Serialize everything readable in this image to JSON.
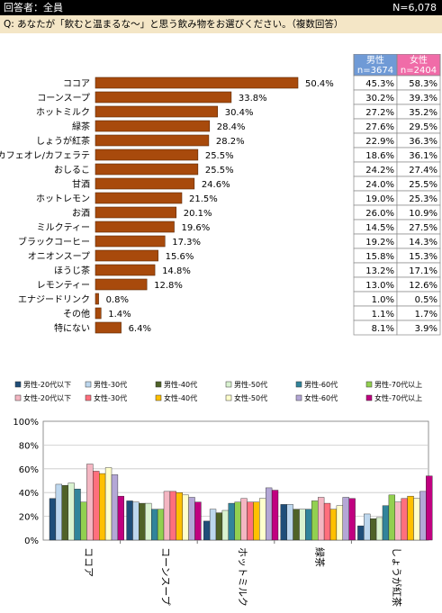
{
  "header": {
    "respondents": "回答者：全員",
    "n_total": "N=6,078"
  },
  "question": "Q:  あなたが「飲むと温まるな～」と思う飲み物をお選びください。（複数回答）",
  "colors": {
    "bar": "#a84a0c",
    "male_header": "#6f9ad6",
    "female_header": "#f06ca8"
  },
  "chart_data": [
    {
      "type": "bar",
      "orientation": "horizontal",
      "categories": [
        "ココア",
        "コーンスープ",
        "ホットミルク",
        "緑茶",
        "しょうが紅茶",
        "カフェオレ/カフェラテ",
        "おしるこ",
        "甘酒",
        "ホットレモン",
        "お酒",
        "ミルクティー",
        "ブラックコーヒー",
        "オニオンスープ",
        "ほうじ茶",
        "レモンティー",
        "エナジードリンク",
        "その他",
        "特にない"
      ],
      "values": [
        50.4,
        33.8,
        30.4,
        28.4,
        28.2,
        25.5,
        25.5,
        24.6,
        21.5,
        20.1,
        19.6,
        17.3,
        15.6,
        14.8,
        12.8,
        0.8,
        1.4,
        6.4
      ],
      "value_labels": [
        "50.4%",
        "33.8%",
        "30.4%",
        "28.4%",
        "28.2%",
        "25.5%",
        "25.5%",
        "24.6%",
        "21.5%",
        "20.1%",
        "19.6%",
        "17.3%",
        "15.6%",
        "14.8%",
        "12.8%",
        "0.8%",
        "1.4%",
        "6.4%"
      ],
      "xlim": [
        0,
        60
      ]
    },
    {
      "type": "table",
      "columns": [
        {
          "name": "男性",
          "n": "n=3674",
          "values": [
            "45.3%",
            "30.2%",
            "27.2%",
            "27.6%",
            "22.9%",
            "18.6%",
            "24.2%",
            "24.0%",
            "19.0%",
            "26.0%",
            "14.5%",
            "19.2%",
            "15.8%",
            "13.2%",
            "13.0%",
            "1.0%",
            "1.1%",
            "8.1%"
          ]
        },
        {
          "name": "女性",
          "n": "n=2404",
          "values": [
            "58.3%",
            "39.3%",
            "35.2%",
            "29.5%",
            "36.3%",
            "36.1%",
            "27.4%",
            "25.5%",
            "25.3%",
            "10.9%",
            "27.5%",
            "14.3%",
            "15.3%",
            "17.1%",
            "12.6%",
            "0.5%",
            "1.7%",
            "3.9%"
          ]
        }
      ]
    },
    {
      "type": "bar",
      "orientation": "vertical",
      "categories": [
        "ココア",
        "コーンスープ",
        "ホットミルク",
        "緑茶",
        "しょうが紅茶"
      ],
      "y_ticks": [
        "0%",
        "20%",
        "40%",
        "60%",
        "80%",
        "100%"
      ],
      "ylim": [
        0,
        100
      ],
      "legend_position": "top",
      "series": [
        {
          "name": "男性-20代以下",
          "color": "#1f4e79",
          "values": [
            35,
            33,
            16,
            30,
            12
          ]
        },
        {
          "name": "男性-30代",
          "color": "#bdd7ee",
          "values": [
            47,
            32,
            26,
            30,
            22
          ]
        },
        {
          "name": "男性-40代",
          "color": "#4f6228",
          "values": [
            46,
            31,
            23,
            26,
            18
          ]
        },
        {
          "name": "男性-50代",
          "color": "#d9f2d0",
          "values": [
            48,
            31,
            25,
            26,
            19
          ]
        },
        {
          "name": "男性-60代",
          "color": "#31849b",
          "values": [
            43,
            26,
            31,
            26,
            29
          ]
        },
        {
          "name": "男性-70代以上",
          "color": "#92d050",
          "values": [
            32,
            26,
            32,
            33,
            38
          ]
        },
        {
          "name": "女性-20代以下",
          "color": "#f4b6c2",
          "values": [
            64,
            41,
            35,
            36,
            32
          ]
        },
        {
          "name": "女性-30代",
          "color": "#ff6f7d",
          "values": [
            58,
            41,
            32,
            31,
            35
          ]
        },
        {
          "name": "女性-40代",
          "color": "#ffc000",
          "values": [
            56,
            40,
            32,
            26,
            37
          ]
        },
        {
          "name": "女性-50代",
          "color": "#ffffcc",
          "values": [
            61,
            38,
            35,
            29,
            35
          ]
        },
        {
          "name": "女性-60代",
          "color": "#b4a7d6",
          "values": [
            55,
            36,
            44,
            36,
            41
          ]
        },
        {
          "name": "女性-70代以上",
          "color": "#c00080",
          "values": [
            37,
            32,
            42,
            35,
            54
          ]
        }
      ]
    }
  ]
}
